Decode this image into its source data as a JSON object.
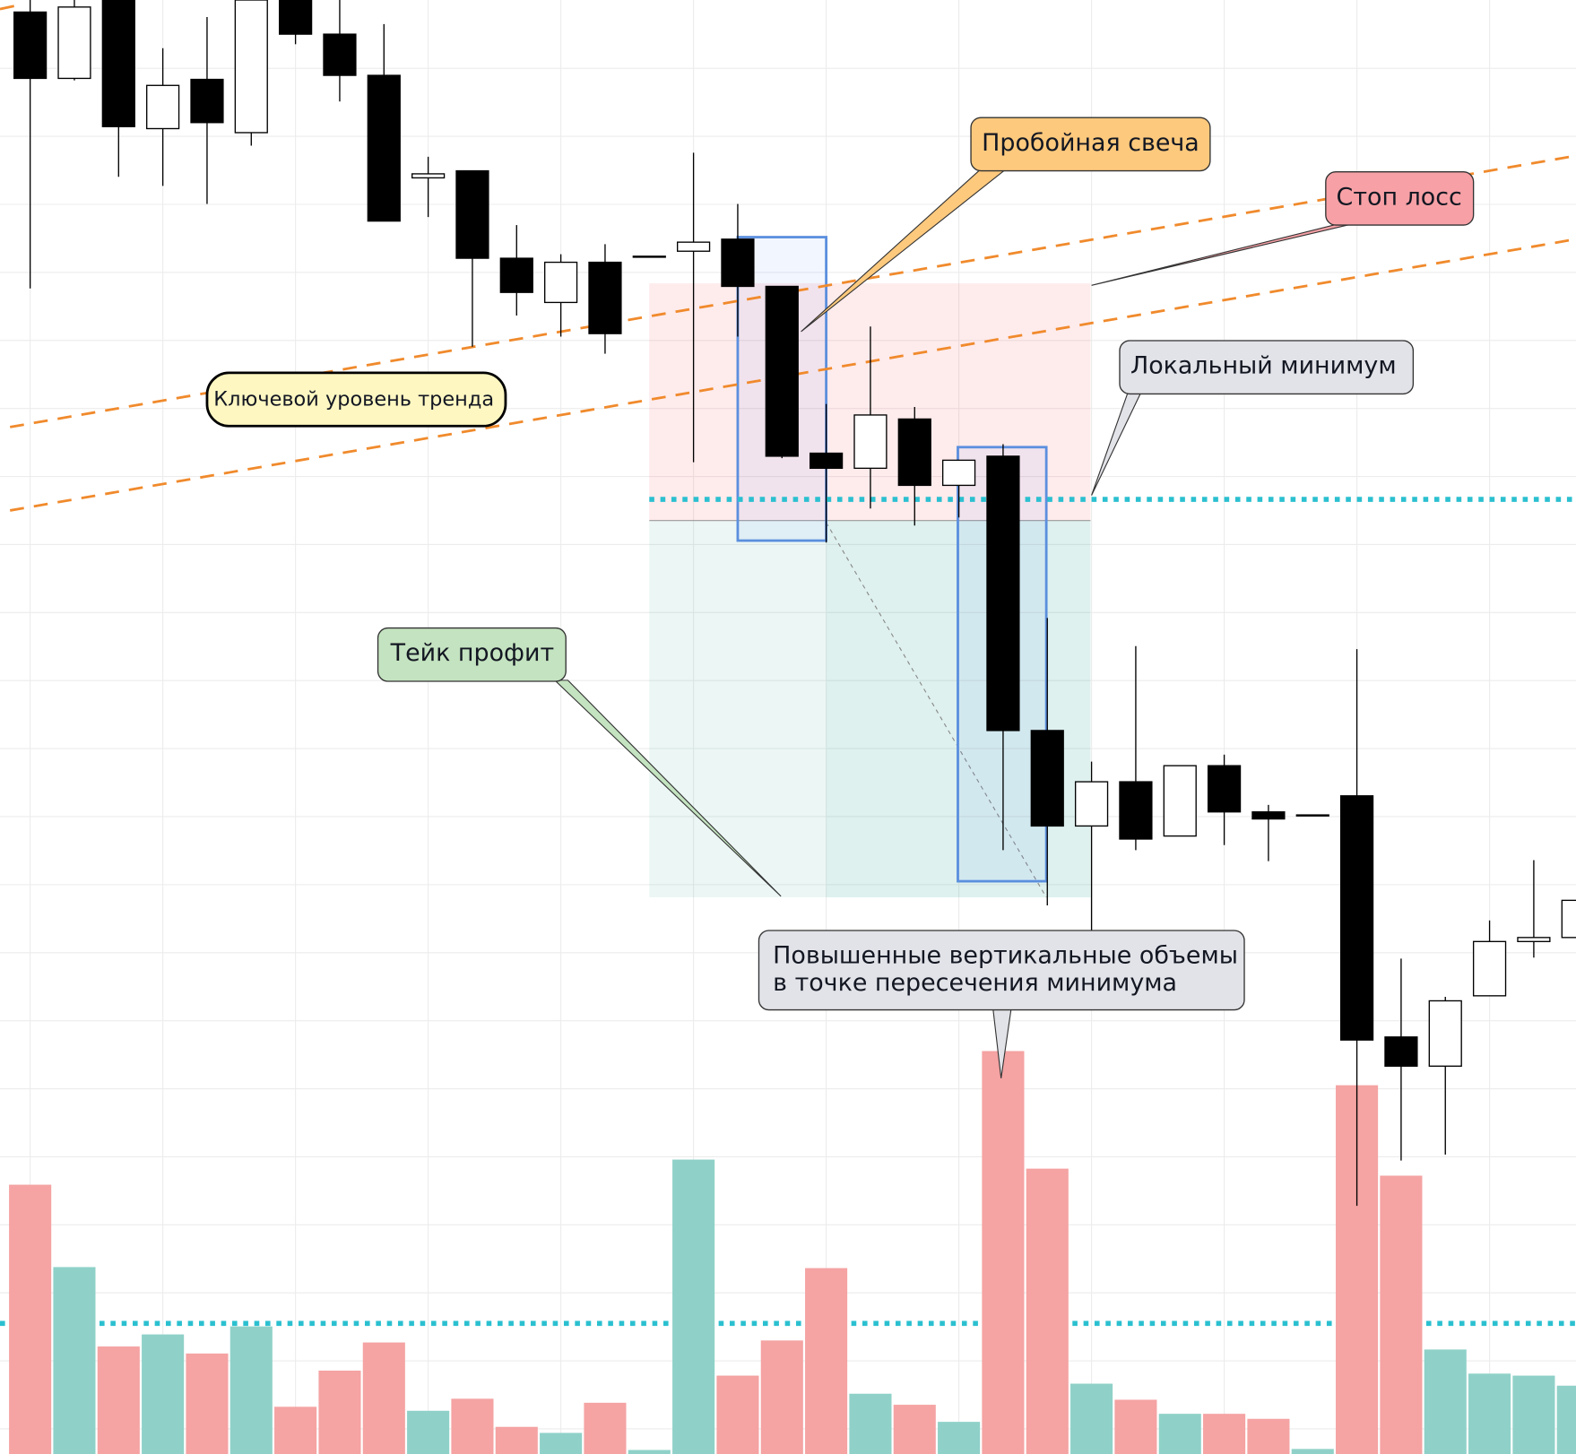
{
  "chart_data": {
    "type": "candlestick",
    "ylim": [
      0,
      1447
    ],
    "up_color": "#ffffff",
    "down_color": "#000000",
    "open": [
      1435,
      1369,
      1447,
      1319,
      1368,
      1315,
      1447,
      1413,
      1372,
      1270,
      1277,
      1190,
      1146,
      1186,
      1192,
      1197,
      1209,
      1162,
      996,
      981,
      1030,
      964,
      993,
      720,
      625,
      669,
      615,
      685,
      639,
      636,
      655,
      415,
      386,
      456,
      510,
      514
    ],
    "high": [
      1447,
      1447,
      1447,
      1399,
      1430,
      1447,
      1447,
      1447,
      1423,
      1291,
      1277,
      1223,
      1194,
      1204,
      1192,
      1295,
      1244,
      1162,
      1045,
      1122,
      1042,
      989,
      1005,
      832,
      689,
      804,
      685,
      696,
      646,
      636,
      801,
      493,
      455,
      531,
      591,
      551
    ],
    "low": [
      1160,
      1367,
      1271,
      1262,
      1244,
      1302,
      1403,
      1346,
      1227,
      1231,
      1102,
      1133,
      1112,
      1095,
      1192,
      987,
      1112,
      991,
      907,
      941,
      924,
      932,
      601,
      546,
      517,
      601,
      615,
      606,
      590,
      636,
      247,
      292,
      298,
      456,
      494,
      514
    ],
    "close": [
      1369,
      1440,
      1321,
      1362,
      1325,
      1447,
      1413,
      1372,
      1227,
      1274,
      1190,
      1156,
      1186,
      1115,
      1192,
      1206,
      1162,
      993,
      981,
      1034,
      964,
      989,
      720,
      625,
      669,
      612,
      685,
      639,
      632,
      636,
      412,
      386,
      451,
      510,
      514,
      551
    ],
    "volume": {
      "values": [
        268,
        186,
        107,
        119,
        100,
        127,
        47,
        83,
        111,
        43,
        55,
        27,
        21,
        51,
        4,
        293,
        78,
        113,
        185,
        60,
        49,
        32,
        401,
        284,
        70,
        54,
        40,
        40,
        35,
        5,
        367,
        277,
        104,
        80,
        78,
        68
      ],
      "colors": [
        "#f5a3a3",
        "#8fd1c8",
        "#f5a3a3",
        "#8fd1c8",
        "#f5a3a3",
        "#8fd1c8",
        "#f5a3a3",
        "#f5a3a3",
        "#f5a3a3",
        "#8fd1c8",
        "#f5a3a3",
        "#f5a3a3",
        "#8fd1c8",
        "#f5a3a3",
        "#8fd1c8",
        "#8fd1c8",
        "#f5a3a3",
        "#f5a3a3",
        "#f5a3a3",
        "#8fd1c8",
        "#f5a3a3",
        "#8fd1c8",
        "#f5a3a3",
        "#f5a3a3",
        "#8fd1c8",
        "#f5a3a3",
        "#8fd1c8",
        "#f5a3a3",
        "#f5a3a3",
        "#8fd1c8",
        "#f5a3a3",
        "#f5a3a3",
        "#8fd1c8",
        "#8fd1c8",
        "#8fd1c8",
        "#8fd1c8"
      ]
    },
    "annotations": {
      "breakout": "Пробойная свеча",
      "stop_loss": "Стоп лосс",
      "trend_level": "Ключевой уровень тренда",
      "local_min": "Локальный минимум",
      "take_profit": "Тейк профит",
      "volumes": [
        "Повышенные вертикальные объемы",
        "в точке пересечения минимума"
      ]
    }
  }
}
